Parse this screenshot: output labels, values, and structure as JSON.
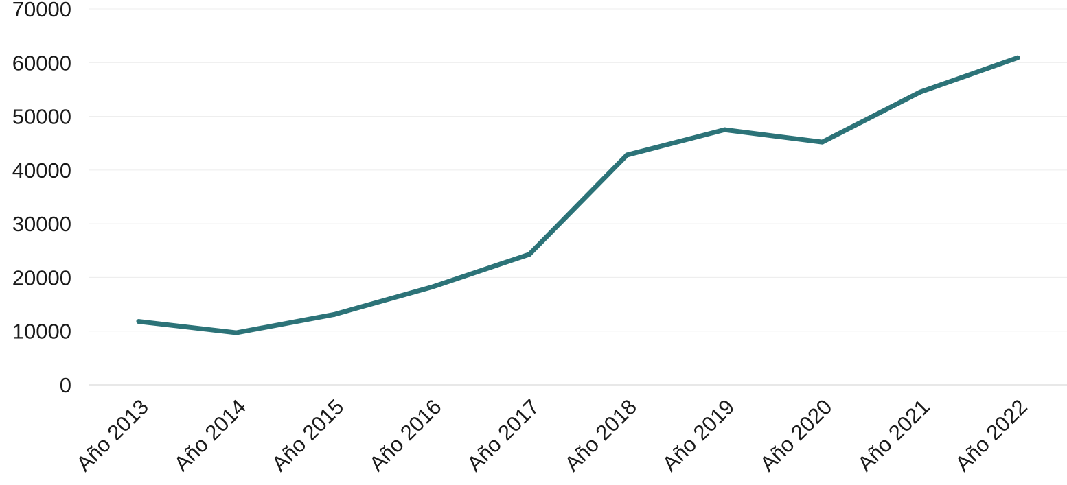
{
  "chart_data": {
    "type": "line",
    "title": "",
    "xlabel": "",
    "ylabel": "",
    "categories": [
      "Año 2013",
      "Año 2014",
      "Año 2015",
      "Año 2016",
      "Año 2017",
      "Año 2018",
      "Año 2019",
      "Año 2020",
      "Año 2021",
      "Año 2022"
    ],
    "series": [
      {
        "values": [
          11800,
          9700,
          13100,
          18200,
          24300,
          42800,
          47500,
          45200,
          54500,
          60900
        ],
        "color": "#2c7378"
      }
    ],
    "ylim": [
      0,
      70000
    ],
    "yticks": [
      "0",
      "10000",
      "20000",
      "30000",
      "40000",
      "50000",
      "60000",
      "70000"
    ],
    "grid": true,
    "legend": "none"
  }
}
